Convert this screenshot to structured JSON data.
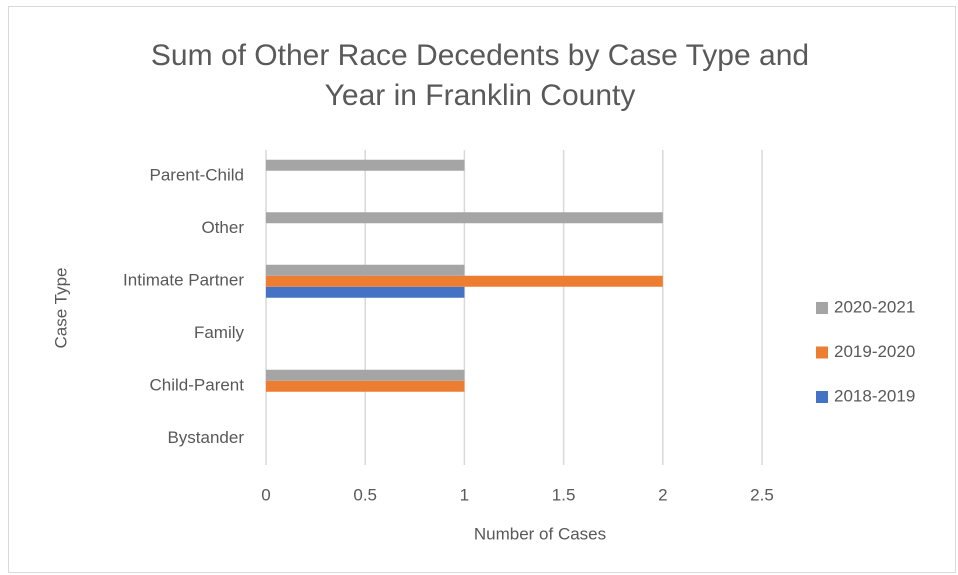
{
  "chart_data": {
    "type": "bar",
    "orientation": "horizontal",
    "title": "Sum of Other Race Decedents by Case Type and Year in Franklin County",
    "x_label": "Number of Cases",
    "y_label": "Case Type",
    "categories": [
      "Bystander",
      "Child-Parent",
      "Family",
      "Intimate Partner",
      "Other",
      "Parent-Child"
    ],
    "series": [
      {
        "name": "2018-2019",
        "color": "#4472c4",
        "values": [
          null,
          null,
          null,
          1,
          null,
          null
        ]
      },
      {
        "name": "2019-2020",
        "color": "#ed7d31",
        "values": [
          null,
          1,
          null,
          2,
          null,
          null
        ]
      },
      {
        "name": "2020-2021",
        "color": "#a5a5a5",
        "values": [
          null,
          1,
          null,
          1,
          2,
          1
        ]
      }
    ],
    "xlim": [
      0,
      2.5
    ],
    "xticks": [
      0,
      0.5,
      1,
      1.5,
      2,
      2.5
    ],
    "grid": true,
    "legend": "right"
  }
}
